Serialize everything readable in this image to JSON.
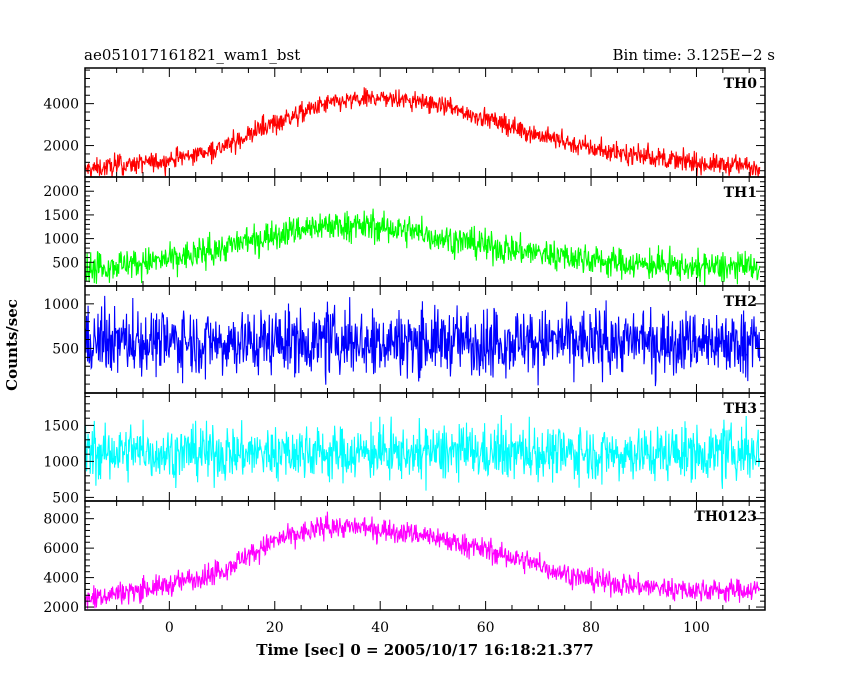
{
  "header": {
    "title": "ae051017161821_wam1_bst",
    "bin_time": "Bin time: 3.125E−2 s"
  },
  "chart_data": {
    "type": "line",
    "title": "ae051017161821_wam1_bst",
    "xlabel": "Time [sec] 0 = 2005/10/17 16:18:21.377",
    "ylabel": "Counts/sec",
    "xlim": [
      -16,
      113
    ],
    "x_ticks": [
      0,
      20,
      40,
      60,
      80,
      100
    ],
    "x_tick_labels": [
      "0",
      "20",
      "40",
      "60",
      "80",
      "100"
    ],
    "x_data_range": [
      -16,
      112
    ],
    "panels": [
      {
        "name": "TH0",
        "color": "#ff0000",
        "ylim": [
          500,
          5700
        ],
        "y_ticks": [
          2000,
          4000
        ],
        "y_tick_labels": [
          "2000",
          "4000"
        ],
        "profile": {
          "x": [
            -16,
            0,
            10,
            20,
            30,
            40,
            50,
            60,
            70,
            80,
            90,
            100,
            112
          ],
          "y": [
            850,
            1300,
            1900,
            3100,
            4000,
            4300,
            4000,
            3300,
            2500,
            1850,
            1500,
            1150,
            1000
          ]
        },
        "noise": 420
      },
      {
        "name": "TH1",
        "color": "#00ff00",
        "ylim": [
          0,
          2300
        ],
        "y_ticks": [
          500,
          1000,
          1500,
          2000
        ],
        "y_tick_labels": [
          "500",
          "1000",
          "1500",
          "2000"
        ],
        "profile": {
          "x": [
            -16,
            0,
            10,
            20,
            30,
            40,
            50,
            60,
            70,
            80,
            90,
            100,
            112
          ],
          "y": [
            380,
            550,
            800,
            1100,
            1300,
            1250,
            1050,
            850,
            700,
            550,
            450,
            400,
            380
          ]
        },
        "noise": 280
      },
      {
        "name": "TH2",
        "color": "#0000ff",
        "ylim": [
          0,
          1200
        ],
        "y_ticks": [
          500,
          1000
        ],
        "y_tick_labels": [
          "500",
          "1000"
        ],
        "profile": {
          "x": [
            -16,
            112
          ],
          "y": [
            580,
            580
          ]
        },
        "noise": 320
      },
      {
        "name": "TH3",
        "color": "#00ffff",
        "ylim": [
          450,
          1950
        ],
        "y_ticks": [
          500,
          1000,
          1500
        ],
        "y_tick_labels": [
          "500",
          "1000",
          "1500"
        ],
        "profile": {
          "x": [
            -16,
            112
          ],
          "y": [
            1120,
            1120
          ]
        },
        "noise": 330
      },
      {
        "name": "TH0123",
        "color": "#ff00ff",
        "ylim": [
          1800,
          9200
        ],
        "y_ticks": [
          2000,
          4000,
          6000,
          8000
        ],
        "y_tick_labels": [
          "2000",
          "4000",
          "6000",
          "8000"
        ],
        "profile": {
          "x": [
            -16,
            0,
            10,
            20,
            30,
            40,
            50,
            60,
            70,
            80,
            90,
            100,
            112
          ],
          "y": [
            2600,
            3500,
            4500,
            6500,
            7500,
            7300,
            6800,
            5900,
            4800,
            3800,
            3400,
            3100,
            3200
          ]
        },
        "noise": 680
      }
    ]
  }
}
